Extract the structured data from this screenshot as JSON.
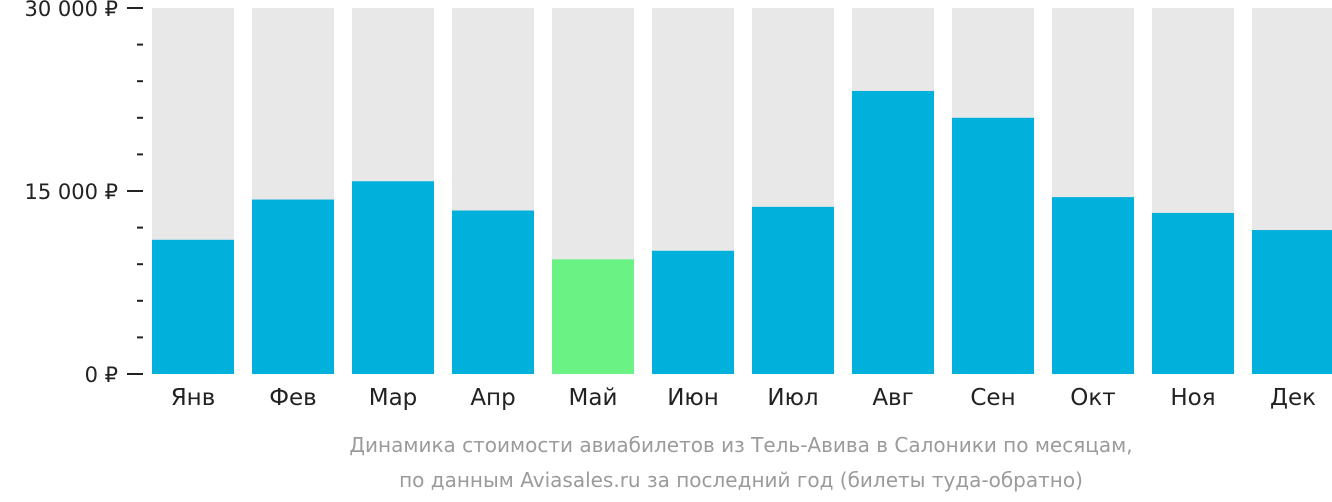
{
  "chart_data": {
    "type": "bar",
    "categories": [
      "Янв",
      "Фев",
      "Мар",
      "Апр",
      "Май",
      "Июн",
      "Июл",
      "Авг",
      "Сен",
      "Окт",
      "Ноя",
      "Дек"
    ],
    "values": [
      11000,
      14300,
      15800,
      13400,
      9400,
      10100,
      13700,
      23200,
      21000,
      14500,
      13200,
      11800
    ],
    "ylim": [
      0,
      30000
    ],
    "yticks": [
      {
        "value": 0,
        "label": "0 ₽"
      },
      {
        "value": 15000,
        "label": "15 000 ₽"
      },
      {
        "value": 30000,
        "label": "30 000 ₽"
      }
    ],
    "minor_tick_step": 3000,
    "highlight_index": 4,
    "colors": {
      "bar": "#02b0dc",
      "highlight": "#6af285",
      "background_bar": "#e8e8e8",
      "axis": "#222222",
      "caption": "#9b9b9b"
    },
    "caption": [
      "Динамика стоимости авиабилетов из Тель-Авива в Салоники по месяцам,",
      "по данным Aviasales.ru за последний год (билеты туда-обратно)"
    ]
  }
}
